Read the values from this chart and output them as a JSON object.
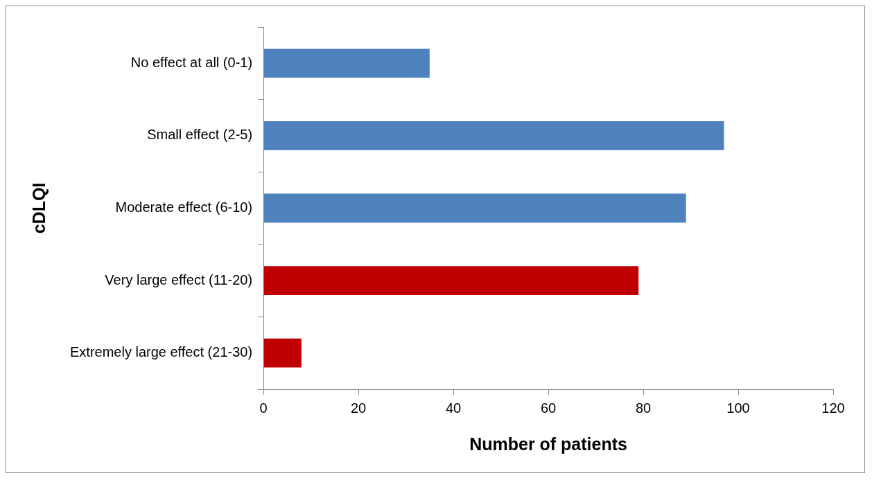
{
  "chart_data": {
    "type": "bar",
    "orientation": "horizontal",
    "xlabel": "Number of patients",
    "ylabel": "cDLQI",
    "categories": [
      "No effect at all (0-1)",
      "Small effect (2-5)",
      "Moderate effect (6-10)",
      "Very large effect (11-20)",
      "Extremely large effect (21-30)"
    ],
    "values": [
      35,
      97,
      89,
      79,
      8
    ],
    "colors": [
      "#4f81bd",
      "#4f81bd",
      "#4f81bd",
      "#c00000",
      "#c00000"
    ],
    "xlim": [
      0,
      120
    ],
    "xticks": [
      0,
      20,
      40,
      60,
      80,
      100,
      120
    ],
    "grid": false,
    "legend": false
  }
}
